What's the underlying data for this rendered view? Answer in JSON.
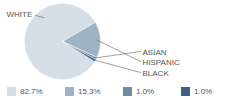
{
  "chart_data": {
    "type": "pie",
    "categories": [
      "WHITE",
      "HISPANIC",
      "ASIAN",
      "BLACK"
    ],
    "values": [
      82.7,
      15.3,
      1.0,
      1.0
    ],
    "value_labels": [
      "82.7%",
      "15.3%",
      "1.0%",
      "1.0%"
    ],
    "colors": [
      "#d6dee7",
      "#9fb3c6",
      "#6d8dab",
      "#3b6185"
    ],
    "legend": "bottom"
  }
}
